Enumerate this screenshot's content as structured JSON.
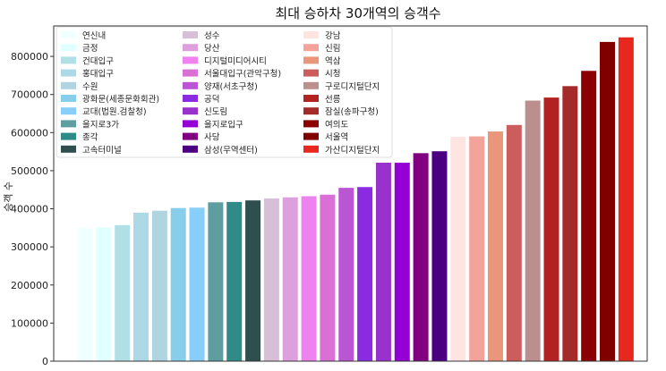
{
  "chart_data": {
    "type": "bar",
    "title": "최대 승하차 30개역의 승객수",
    "xlabel": "",
    "ylabel": "승객 수",
    "ylim": [
      0,
      880000
    ],
    "yticks": [
      0,
      100000,
      200000,
      300000,
      400000,
      500000,
      600000,
      700000,
      800000
    ],
    "ytick_labels": [
      "0",
      "100000",
      "200000",
      "300000",
      "400000",
      "500000",
      "600000",
      "700000",
      "800000"
    ],
    "grid": false,
    "legend_position": "top-left",
    "categories": [
      "연신내",
      "금정",
      "건대입구",
      "홍대입구",
      "수원",
      "광화문(세종문화회관)",
      "교대(법원.검찰청)",
      "을지로3가",
      "종각",
      "고속터미널",
      "성수",
      "당산",
      "디지털미디어시티",
      "서울대입구(관악구청)",
      "양재(서초구청)",
      "공덕",
      "신도림",
      "을지로입구",
      "사당",
      "삼성(무역센터)",
      "강남",
      "신림",
      "역삼",
      "시청",
      "구로디지털단지",
      "선릉",
      "잠실(송파구청)",
      "여의도",
      "서울역",
      "가산디지털단지"
    ],
    "values": [
      349000,
      351000,
      357000,
      390000,
      395000,
      402000,
      403000,
      417000,
      418000,
      422000,
      427000,
      430000,
      433000,
      437000,
      455000,
      457000,
      521000,
      521000,
      546000,
      551000,
      589000,
      590000,
      603000,
      620000,
      684000,
      692000,
      722000,
      762000,
      838000,
      850000
    ],
    "colors": [
      "#f0ffff",
      "#e0ffff",
      "#b0e0e6",
      "#add8e6",
      "#b0d4e0",
      "#87ceeb",
      "#87cefa",
      "#5f9ea0",
      "#2e8b87",
      "#2f4f4f",
      "#d8bfd8",
      "#dda0dd",
      "#ee82ee",
      "#da70d6",
      "#ba55d3",
      "#8a2be2",
      "#9932cc",
      "#9400d3",
      "#800080",
      "#4b0082",
      "#ffe4e1",
      "#f4a39a",
      "#e9967a",
      "#cd5c5c",
      "#bc8f8f",
      "#b22222",
      "#a52a2a",
      "#8b0000",
      "#800000",
      "#e8281e"
    ]
  }
}
